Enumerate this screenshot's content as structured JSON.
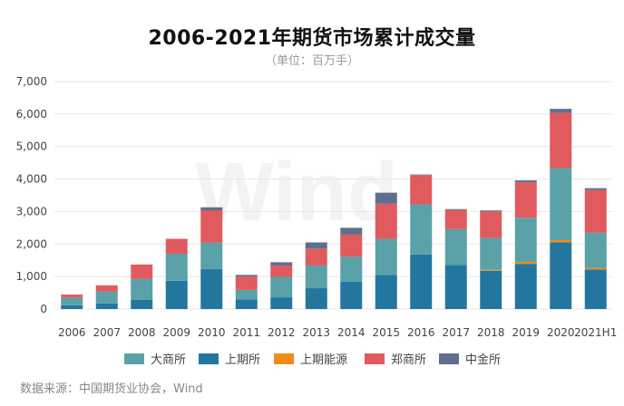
{
  "page": {
    "title": "2006-2021年期货市场累计成交量",
    "subtitle": "（单位：百万手）",
    "source": "数据来源：中国期货业协会，Wind",
    "watermark": "Wind"
  },
  "colors": {
    "dalian": "#5aa1a8",
    "shanghai": "#23779f",
    "ine": "#f28a1c",
    "zhengzhou": "#e05a5e",
    "cffex": "#5e6f8e",
    "grid": "#e6e6e6",
    "axis_text": "#444444"
  },
  "chart_data": {
    "type": "bar",
    "stacked": true,
    "title": "2006-2021年期货市场累计成交量",
    "subtitle": "（单位：百万手）",
    "xlabel": "",
    "ylabel": "",
    "ylim": [
      0,
      7000
    ],
    "yticks": [
      0,
      1000,
      2000,
      3000,
      4000,
      5000,
      6000,
      7000
    ],
    "ytick_labels": [
      "0",
      "1,000",
      "2,000",
      "3,000",
      "4,000",
      "5,000",
      "6,000",
      "7,000"
    ],
    "grid": true,
    "legend_position": "bottom",
    "categories": [
      "2006",
      "2007",
      "2008",
      "2009",
      "2010",
      "2011",
      "2012",
      "2013",
      "2014",
      "2015",
      "2016",
      "2017",
      "2018",
      "2019",
      "2020",
      "2021H1"
    ],
    "series": [
      {
        "name": "上期所",
        "color_key": "shanghai",
        "values": [
          115,
          170,
          280,
          870,
          1230,
          300,
          360,
          640,
          840,
          1050,
          1680,
          1360,
          1175,
          1390,
          2050,
          1220
        ]
      },
      {
        "name": "上期能源",
        "color_key": "ine",
        "values": [
          0,
          0,
          0,
          0,
          0,
          0,
          0,
          0,
          0,
          0,
          0,
          0,
          30,
          60,
          70,
          50
        ]
      },
      {
        "name": "大商所",
        "color_key": "dalian",
        "values": [
          240,
          370,
          650,
          830,
          810,
          290,
          630,
          700,
          770,
          1110,
          1540,
          1100,
          980,
          1360,
          2220,
          1080
        ]
      },
      {
        "name": "郑商所",
        "color_key": "zhengzhou",
        "values": [
          90,
          190,
          440,
          460,
          1000,
          410,
          350,
          520,
          680,
          1080,
          900,
          590,
          820,
          1090,
          1700,
          1310
        ]
      },
      {
        "name": "中金所",
        "color_key": "cffex",
        "values": [
          0,
          0,
          0,
          0,
          90,
          50,
          100,
          190,
          210,
          340,
          20,
          25,
          30,
          60,
          120,
          60
        ]
      }
    ],
    "legend": [
      {
        "name": "大商所",
        "color_key": "dalian"
      },
      {
        "name": "上期所",
        "color_key": "shanghai"
      },
      {
        "name": "上期能源",
        "color_key": "ine"
      },
      {
        "name": "郑商所",
        "color_key": "zhengzhou"
      },
      {
        "name": "中金所",
        "color_key": "cffex"
      }
    ]
  }
}
